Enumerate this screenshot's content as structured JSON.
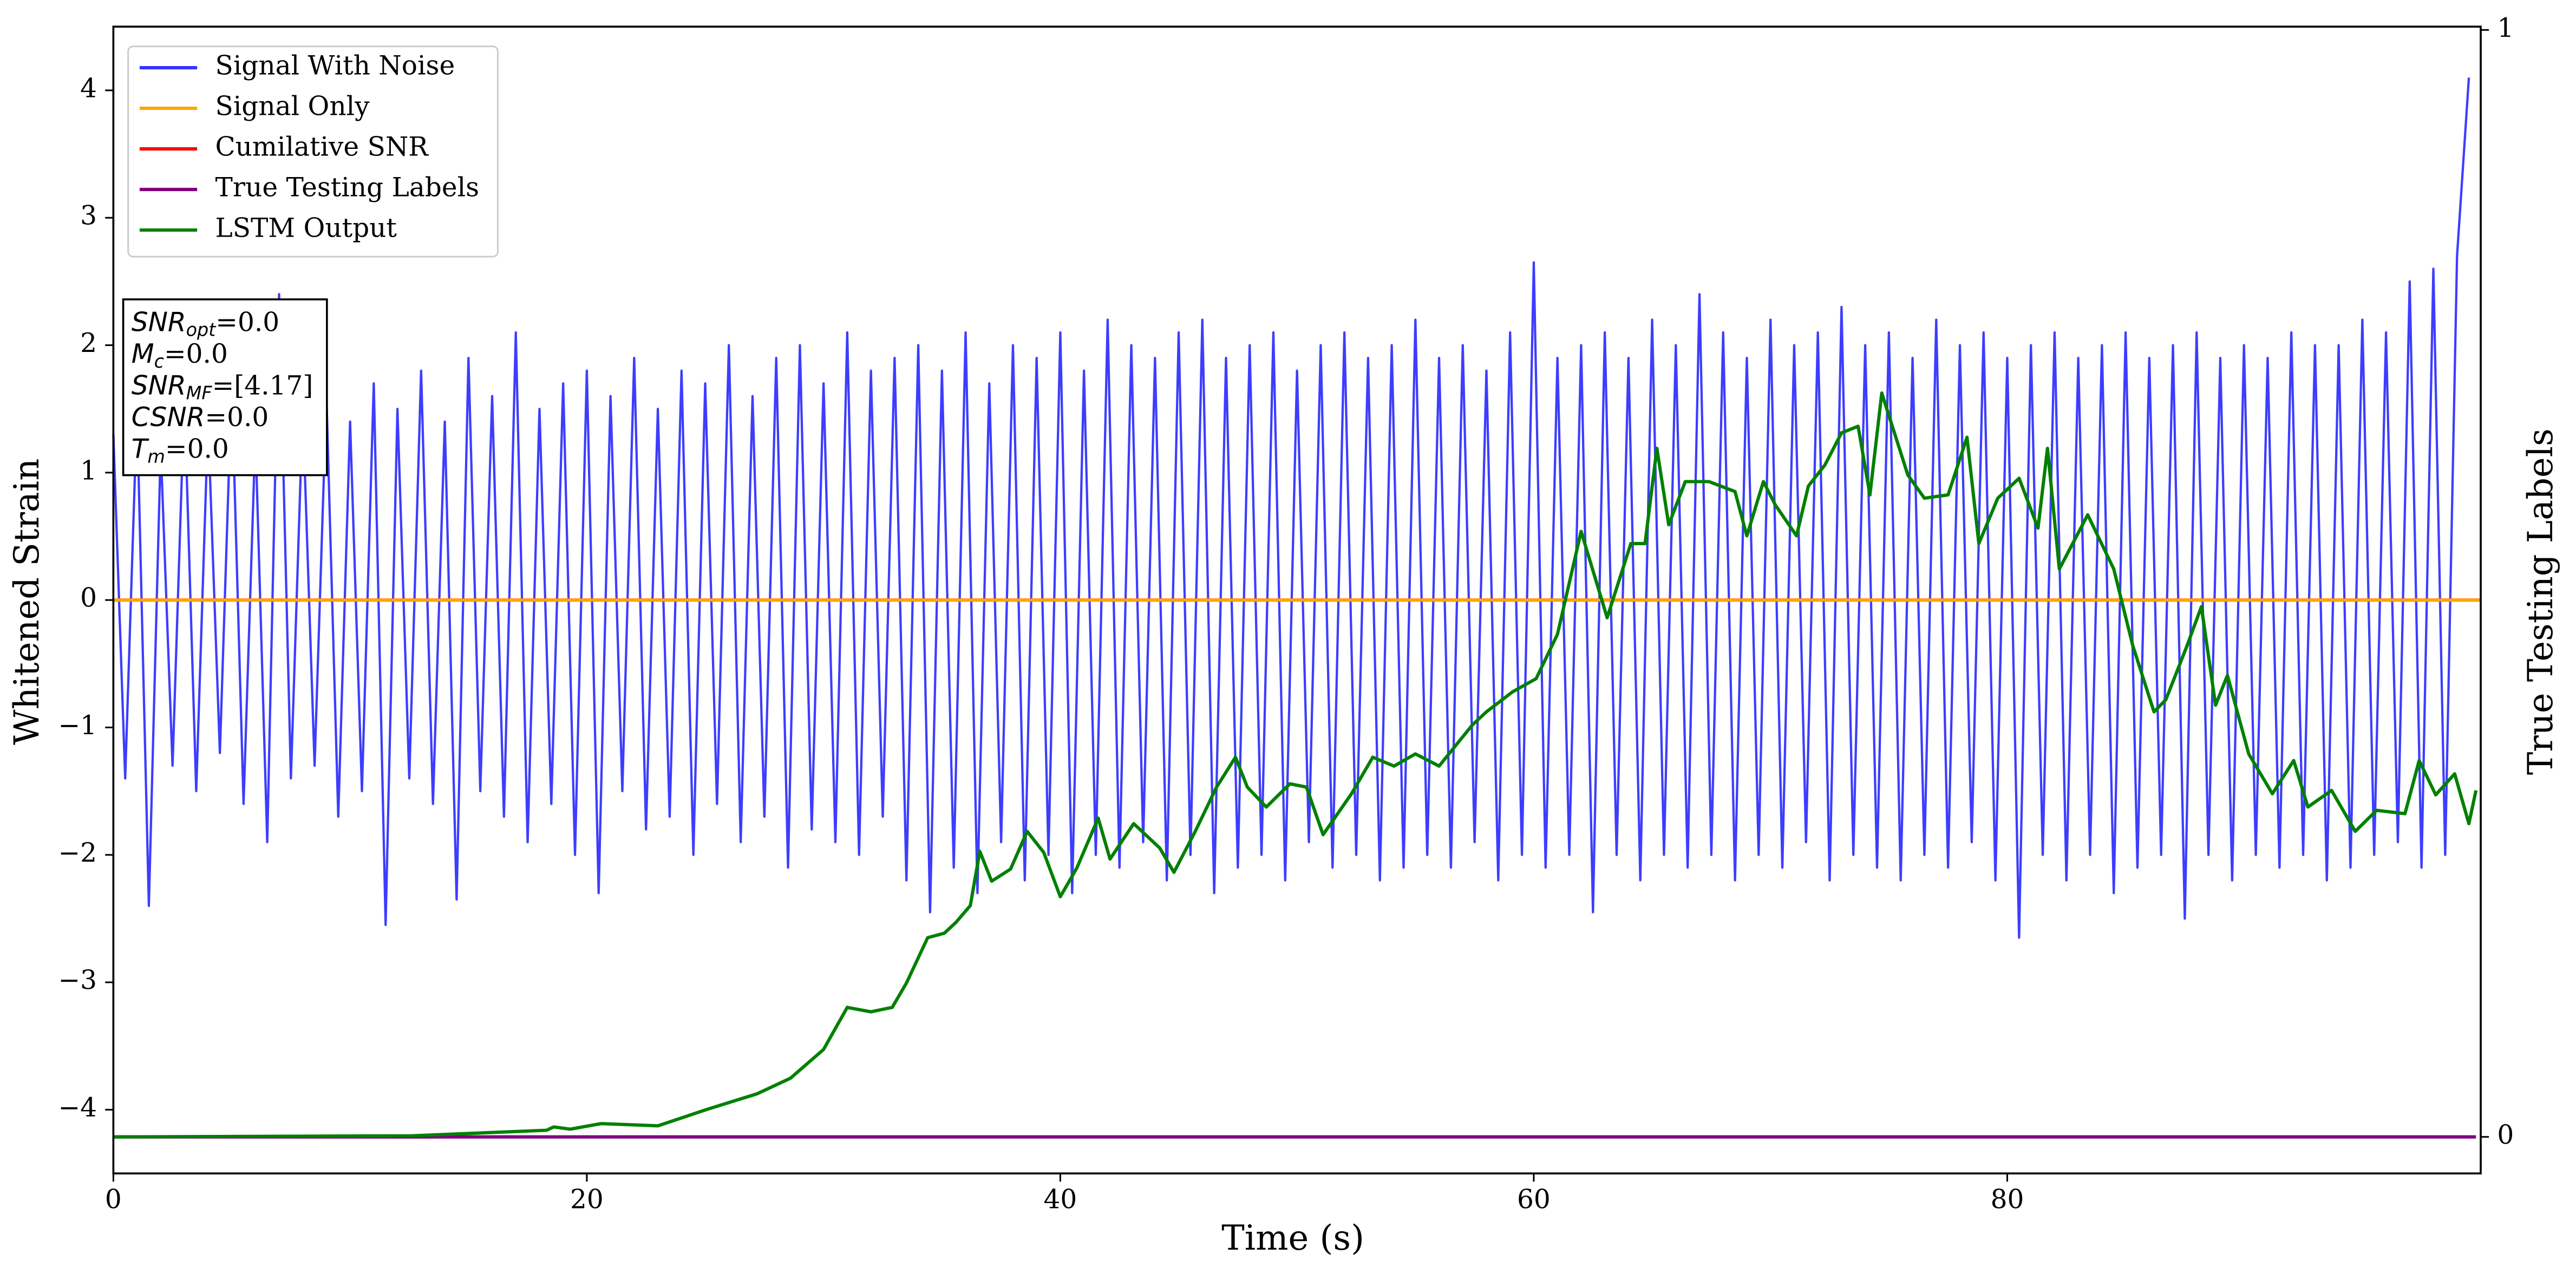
{
  "chart_data": {
    "type": "line",
    "xlabel": "Time (s)",
    "ylabel": "Whitened Strain",
    "y2label": "True Testing Labels",
    "xlim": [
      0,
      100
    ],
    "xticks": [
      0,
      20,
      40,
      60,
      80
    ],
    "ylim": [
      -4.5,
      4.5
    ],
    "yticks": [
      {
        "value": -4,
        "label": "−4"
      },
      {
        "value": -3,
        "label": "−3"
      },
      {
        "value": -2,
        "label": "−2"
      },
      {
        "value": -1,
        "label": "−1"
      },
      0,
      1,
      2,
      3,
      4
    ],
    "y2lim": [
      -0.033,
      1.003
    ],
    "y2ticks": [
      0,
      1
    ],
    "legend": "upper left",
    "series": [
      {
        "name": "Signal With Noise",
        "color": "#3333ff",
        "x": [
          0,
          0.5,
          1,
          1.5,
          2,
          2.5,
          3,
          3.5,
          4,
          4.5,
          5,
          5.5,
          6,
          6.5,
          7,
          7.5,
          8,
          8.5,
          9,
          9.5,
          10,
          10.5,
          11,
          11.5,
          12,
          12.5,
          13,
          13.5,
          14,
          14.5,
          15,
          15.5,
          16,
          16.5,
          17,
          17.5,
          18,
          18.5,
          19,
          19.5,
          20,
          20.5,
          21,
          21.5,
          22,
          22.5,
          23,
          23.5,
          24,
          24.5,
          25,
          25.5,
          26,
          26.5,
          27,
          27.5,
          28,
          28.5,
          29,
          29.5,
          30,
          30.5,
          31,
          31.5,
          32,
          32.5,
          33,
          33.5,
          34,
          34.5,
          35,
          35.5,
          36,
          36.5,
          37,
          37.5,
          38,
          38.5,
          39,
          39.5,
          40,
          40.5,
          41,
          41.5,
          42,
          42.5,
          43,
          43.5,
          44,
          44.5,
          45,
          45.5,
          46,
          46.5,
          47,
          47.5,
          48,
          48.5,
          49,
          49.5,
          50,
          50.5,
          51,
          51.5,
          52,
          52.5,
          53,
          53.5,
          54,
          54.5,
          55,
          55.5,
          56,
          56.5,
          57,
          57.5,
          58,
          58.5,
          59,
          59.5,
          60,
          60.5,
          61,
          61.5,
          62,
          62.5,
          63,
          63.5,
          64,
          64.5,
          65,
          65.5,
          66,
          66.5,
          67,
          67.5,
          68,
          68.5,
          69,
          69.5,
          70,
          70.5,
          71,
          71.5,
          72,
          72.5,
          73,
          73.5,
          74,
          74.5,
          75,
          75.5,
          76,
          76.5,
          77,
          77.5,
          78,
          78.5,
          79,
          79.5,
          80,
          80.5,
          81,
          81.5,
          82,
          82.5,
          83,
          83.5,
          84,
          84.5,
          85,
          85.5,
          86,
          86.5,
          87,
          87.5,
          88,
          88.5,
          89,
          89.5,
          90,
          90.5,
          91,
          91.5,
          92,
          92.5,
          93,
          93.5,
          94,
          94.5,
          95,
          95.5,
          96,
          96.5,
          97,
          97.5,
          98,
          98.5,
          99,
          99.5
        ],
        "values": [
          1.3,
          -1.4,
          1.5,
          -2.4,
          1.2,
          -1.3,
          1.6,
          -1.5,
          1.4,
          -1.2,
          1.7,
          -1.6,
          1.3,
          -1.9,
          2.4,
          -1.4,
          1.5,
          -1.3,
          1.6,
          -1.7,
          1.4,
          -1.5,
          1.7,
          -2.55,
          1.5,
          -1.4,
          1.8,
          -1.6,
          1.4,
          -2.35,
          1.9,
          -1.5,
          1.6,
          -1.7,
          2.1,
          -1.9,
          1.5,
          -1.6,
          1.7,
          -2.0,
          1.8,
          -2.3,
          1.6,
          -1.5,
          1.9,
          -1.8,
          1.5,
          -1.7,
          1.8,
          -2.0,
          1.7,
          -1.6,
          2.0,
          -1.9,
          1.6,
          -1.7,
          1.9,
          -2.1,
          2.0,
          -1.8,
          1.7,
          -1.9,
          2.1,
          -2.0,
          1.8,
          -1.7,
          1.9,
          -2.2,
          2.0,
          -2.45,
          1.8,
          -2.1,
          2.1,
          -2.3,
          1.7,
          -1.9,
          2.0,
          -2.2,
          1.9,
          -2.0,
          2.1,
          -2.3,
          1.8,
          -2.0,
          2.2,
          -2.1,
          2.0,
          -1.9,
          1.9,
          -2.2,
          2.1,
          -2.0,
          2.2,
          -2.3,
          1.9,
          -2.1,
          2.0,
          -2.0,
          2.1,
          -2.2,
          1.8,
          -1.9,
          2.0,
          -2.1,
          2.1,
          -2.0,
          1.9,
          -2.2,
          2.0,
          -2.1,
          2.2,
          -2.0,
          1.9,
          -2.1,
          2.0,
          -1.9,
          1.8,
          -2.2,
          2.1,
          -2.0,
          2.65,
          -2.1,
          1.9,
          -2.0,
          2.0,
          -2.45,
          2.1,
          -2.0,
          1.9,
          -2.2,
          2.2,
          -2.0,
          2.0,
          -2.1,
          2.4,
          -2.0,
          2.1,
          -2.2,
          1.9,
          -2.0,
          2.2,
          -2.1,
          2.0,
          -1.9,
          2.1,
          -2.2,
          2.3,
          -2.0,
          2.0,
          -2.1,
          2.1,
          -2.2,
          1.9,
          -2.0,
          2.2,
          -2.1,
          2.0,
          -1.9,
          2.1,
          -2.2,
          1.9,
          -2.65,
          2.0,
          -2.0,
          2.1,
          -2.2,
          1.9,
          -2.0,
          2.0,
          -2.3,
          2.1,
          -2.1,
          1.9,
          -2.0,
          2.0,
          -2.5,
          2.1,
          -2.0,
          1.9,
          -2.2,
          2.0,
          -2.0,
          1.9,
          -2.1,
          2.1,
          -2.0,
          2.0,
          -2.2,
          2.0,
          -2.1,
          2.2,
          -2.0,
          2.1,
          -1.9,
          2.5,
          -2.1,
          2.6,
          -2.0,
          2.7,
          4.1
        ]
      },
      {
        "name": "Signal Only",
        "color": "#ffa500",
        "x": [
          0,
          100
        ],
        "values": [
          0,
          0
        ]
      },
      {
        "name": "Cumilative SNR",
        "color": "#ff0000",
        "x": [
          0,
          100
        ],
        "values": [
          0,
          0
        ]
      },
      {
        "name": "True Testing Labels",
        "color": "#800080",
        "axis": "y2",
        "x": [
          0,
          99.8
        ],
        "values": [
          0,
          0
        ]
      },
      {
        "name": "LSTM Output",
        "color": "#008000",
        "axis": "y2",
        "x": [
          0,
          12.6,
          18.3,
          18.6,
          19.3,
          20.6,
          23,
          25.1,
          27.2,
          28.6,
          30,
          31,
          32,
          32.9,
          33.5,
          34.4,
          35.1,
          35.6,
          36.2,
          36.6,
          37.1,
          37.9,
          38.6,
          39.3,
          40,
          40.7,
          41.6,
          42.1,
          43.1,
          44.2,
          44.8,
          45.7,
          46.6,
          47.4,
          47.9,
          48.7,
          49.7,
          50.4,
          51.1,
          52.3,
          53.2,
          54.1,
          55,
          56,
          57.4,
          58,
          59.1,
          60.1,
          61,
          62,
          63.1,
          64.1,
          64.7,
          65.2,
          65.7,
          66.4,
          67.4,
          68.5,
          69,
          69.7,
          70.2,
          71.1,
          71.6,
          72.3,
          73,
          73.7,
          74.2,
          74.7,
          75.8,
          76.5,
          77.5,
          78.3,
          78.8,
          79.6,
          80.5,
          81.3,
          81.7,
          82.2,
          83.4,
          84.5,
          85.3,
          86.2,
          86.7,
          87.6,
          88.2,
          88.8,
          89.3,
          90.2,
          91.2,
          92.1,
          92.7,
          93.7,
          94.7,
          95.6,
          96.8,
          97.4,
          98.1,
          98.9,
          99.5,
          99.8
        ],
        "values": [
          0,
          0.001,
          0.006,
          0.009,
          0.007,
          0.012,
          0.01,
          0.025,
          0.039,
          0.053,
          0.079,
          0.117,
          0.113,
          0.117,
          0.139,
          0.18,
          0.184,
          0.194,
          0.209,
          0.258,
          0.231,
          0.242,
          0.276,
          0.257,
          0.217,
          0.243,
          0.288,
          0.251,
          0.283,
          0.261,
          0.239,
          0.276,
          0.316,
          0.343,
          0.316,
          0.298,
          0.319,
          0.316,
          0.273,
          0.31,
          0.343,
          0.335,
          0.346,
          0.335,
          0.372,
          0.384,
          0.402,
          0.414,
          0.454,
          0.547,
          0.469,
          0.536,
          0.536,
          0.622,
          0.553,
          0.592,
          0.592,
          0.583,
          0.543,
          0.592,
          0.571,
          0.543,
          0.588,
          0.607,
          0.636,
          0.642,
          0.58,
          0.672,
          0.598,
          0.577,
          0.58,
          0.632,
          0.536,
          0.577,
          0.595,
          0.55,
          0.622,
          0.513,
          0.562,
          0.513,
          0.444,
          0.384,
          0.395,
          0.444,
          0.479,
          0.39,
          0.417,
          0.346,
          0.31,
          0.34,
          0.298,
          0.313,
          0.276,
          0.295,
          0.292,
          0.34,
          0.309,
          0.328,
          0.283,
          0.313
        ]
      }
    ],
    "annotation": [
      {
        "base": "SNR",
        "sub": "opt",
        "text": "=0.0"
      },
      {
        "base": "M",
        "sub": "c",
        "text": "=0.0"
      },
      {
        "base": "SNR",
        "sub": "MF",
        "text": "=[4.17]"
      },
      {
        "base": "CSNR",
        "text": "=0.0"
      },
      {
        "base": "T",
        "sub": "m",
        "text": "=0.0"
      }
    ]
  }
}
